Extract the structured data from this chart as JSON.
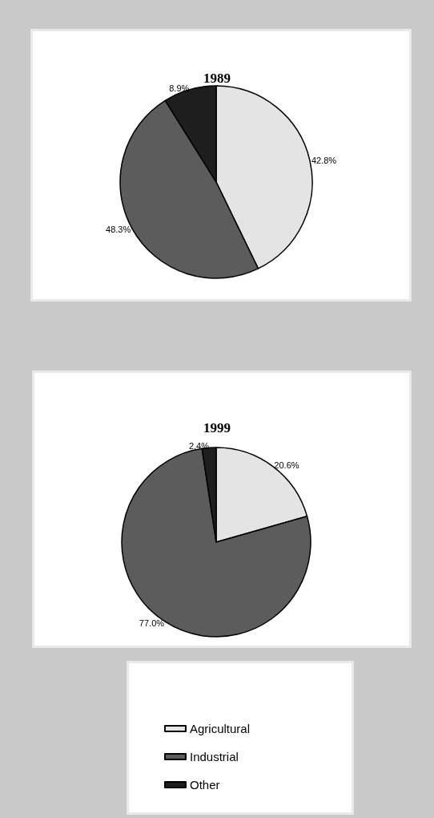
{
  "chart_data": [
    {
      "type": "pie",
      "title": "1989",
      "categories": [
        null,
        null,
        null
      ],
      "values": [
        42.8,
        48.3,
        8.9
      ],
      "colors": [
        "#e4e4e4",
        "#5c5c5c",
        "#1e1e1e"
      ],
      "value_labels": [
        "42.8%",
        "48.3%",
        "8.9%"
      ],
      "legend": false
    },
    {
      "type": "pie",
      "title": "1999",
      "categories": [
        "Agricultural",
        "Industrial",
        "Other"
      ],
      "values": [
        20.6,
        77.0,
        2.4
      ],
      "colors": [
        "#e4e4e4",
        "#5c5c5c",
        "#1e1e1e"
      ],
      "value_labels": [
        "20.6%",
        "77.0%",
        "2.4%"
      ],
      "legend": "bottom"
    }
  ]
}
